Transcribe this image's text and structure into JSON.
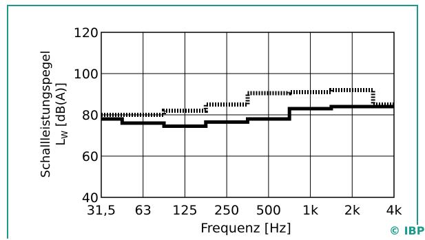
{
  "accent_color": "#1a9a8a",
  "credit": "© IBP",
  "chart_data": {
    "type": "line",
    "step": true,
    "xlabel": "Frequenz [Hz]",
    "ylabel_top": "Schallleistungspegel",
    "ylabel_bottom": "L",
    "ylabel_sub": "W",
    "ylabel_rest": " [dB(A)]",
    "x_tick_labels": [
      "31,5",
      "63",
      "125",
      "250",
      "500",
      "1k",
      "2k",
      "4k"
    ],
    "y_ticks": [
      40,
      60,
      80,
      100,
      120
    ],
    "ylim": [
      40,
      120
    ],
    "grid": true,
    "reference_line": 80,
    "bands": [
      "31,5",
      "63",
      "125",
      "250",
      "500",
      "1k",
      "2k",
      "4k"
    ],
    "series": [
      {
        "style": "solid",
        "values": [
          78,
          76,
          74.5,
          76.5,
          78,
          83,
          84,
          84
        ]
      },
      {
        "style": "dotted",
        "values": [
          80,
          80,
          82,
          85,
          90.5,
          91,
          92,
          85
        ]
      }
    ]
  }
}
